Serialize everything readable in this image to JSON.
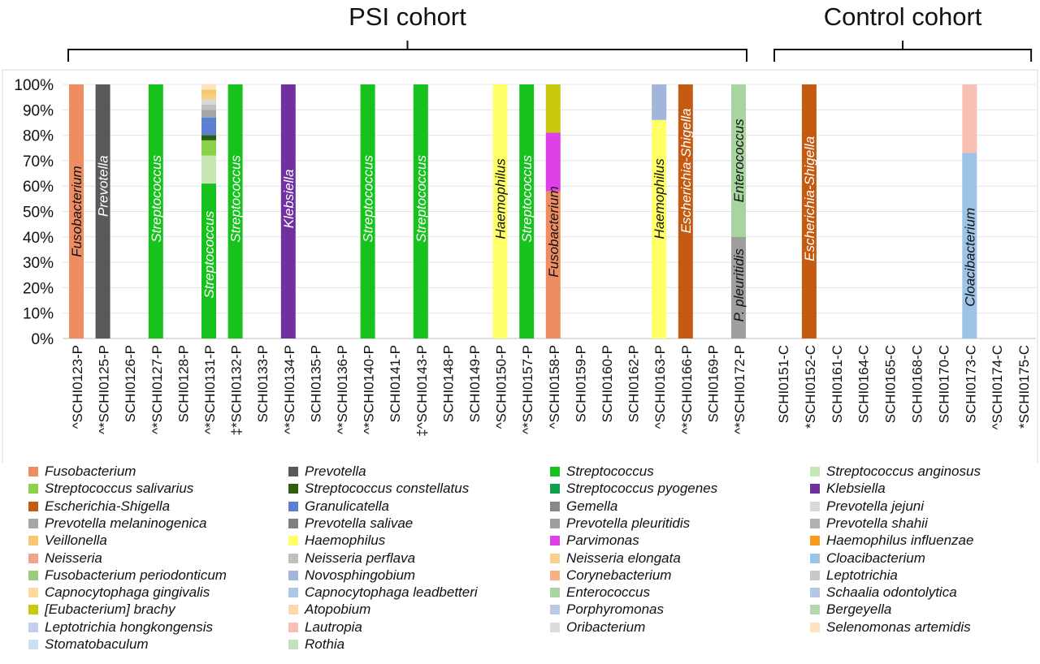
{
  "chart_data": {
    "type": "bar",
    "stacked": true,
    "ylim": [
      0,
      100
    ],
    "y_ticks": [
      "0%",
      "10%",
      "20%",
      "30%",
      "40%",
      "50%",
      "60%",
      "70%",
      "80%",
      "90%",
      "100%"
    ],
    "grid": true,
    "cohorts": [
      {
        "label": "PSI cohort",
        "first": 0,
        "last": 25
      },
      {
        "label": "Control cohort",
        "first": 26,
        "last": 35
      }
    ],
    "categories": [
      "^SCHI0123-P",
      "^*SCHI0125-P",
      "SCHI0126-P",
      "^*SCHI0127-P",
      "SCHI0128-P",
      "^*SCHI0131-P",
      "‡*SCHI0132-P",
      "SCHI0133-P",
      "^*SCHI0134-P",
      "SCHI0135-P",
      "^*SCHI0136-P",
      "^*SCHI0140-P",
      "SCHI0141-P",
      "‡^SCHI0143-P",
      "SCHI0148-P",
      "SCHI0149-P",
      "^SCHI0150-P",
      "^*SCHI0157-P",
      "^SCHI0158-P",
      "SCHI0159-P",
      "SCHI0160-P",
      "SCHI0162-P",
      "^SCHI0163-P",
      "^*SCHI0166-P",
      "SCHI0169-P",
      "^*SCHI0172-P",
      "SCHI0151-C",
      "*SCHI0152-C",
      "SCHI0161-C",
      "SCHI0164-C",
      "SCHI0165-C",
      "SCHI0168-C",
      "SCHI0170-C",
      "SCHI0173-C",
      "^SCHI0174-C",
      "*SCHI0175-C"
    ],
    "bars": [
      {
        "index": 0,
        "segments": [
          {
            "taxon": "Fusobacterium",
            "value": 100
          }
        ],
        "labels": [
          {
            "text": "Fusobacterium",
            "color": "#111111",
            "at": 50
          }
        ]
      },
      {
        "index": 1,
        "segments": [
          {
            "taxon": "Prevotella",
            "value": 100
          }
        ],
        "labels": [
          {
            "text": "Prevotella",
            "color": "#ffffff",
            "at": 60
          }
        ]
      },
      {
        "index": 3,
        "segments": [
          {
            "taxon": "Streptococcus",
            "value": 100
          }
        ],
        "labels": [
          {
            "text": "Streptococcus",
            "color": "#ffffff",
            "at": 55
          }
        ]
      },
      {
        "index": 5,
        "segments": [
          {
            "taxon": "Streptococcus",
            "value": 61
          },
          {
            "taxon": "Streptococcus anginosus",
            "value": 11
          },
          {
            "taxon": "Streptococcus salivarius",
            "value": 6
          },
          {
            "taxon": "Streptococcus constellatus",
            "value": 2
          },
          {
            "taxon": "Granulicatella",
            "value": 7
          },
          {
            "taxon": "Prevotella melaninogenica",
            "value": 3
          },
          {
            "taxon": "Neisseria perflava",
            "value": 2
          },
          {
            "taxon": "Prevotella jejuni",
            "value": 2
          },
          {
            "taxon": "Neisseria elongata",
            "value": 2
          },
          {
            "taxon": "Veillonella",
            "value": 2
          },
          {
            "taxon": "Selenomonas artemidis",
            "value": 2
          }
        ],
        "labels": [
          {
            "text": "Streptococcus",
            "color": "#ffffff",
            "at": 33
          }
        ]
      },
      {
        "index": 6,
        "segments": [
          {
            "taxon": "Streptococcus",
            "value": 100
          }
        ],
        "labels": [
          {
            "text": "Streptococcus",
            "color": "#ffffff",
            "at": 55
          }
        ]
      },
      {
        "index": 8,
        "segments": [
          {
            "taxon": "Klebsiella",
            "value": 100
          }
        ],
        "labels": [
          {
            "text": "Klebsiella",
            "color": "#ffffff",
            "at": 55
          }
        ]
      },
      {
        "index": 11,
        "segments": [
          {
            "taxon": "Streptococcus",
            "value": 100
          }
        ],
        "labels": [
          {
            "text": "Streptococcus",
            "color": "#ffffff",
            "at": 55
          }
        ]
      },
      {
        "index": 13,
        "segments": [
          {
            "taxon": "Streptococcus",
            "value": 100
          }
        ],
        "labels": [
          {
            "text": "Streptococcus",
            "color": "#ffffff",
            "at": 55
          }
        ]
      },
      {
        "index": 16,
        "segments": [
          {
            "taxon": "Haemophilus",
            "value": 100
          }
        ],
        "labels": [
          {
            "text": "Haemophilus",
            "color": "#111111",
            "at": 55
          }
        ]
      },
      {
        "index": 17,
        "segments": [
          {
            "taxon": "Streptococcus",
            "value": 100
          }
        ],
        "labels": [
          {
            "text": "Streptococcus",
            "color": "#ffffff",
            "at": 55
          }
        ]
      },
      {
        "index": 18,
        "segments": [
          {
            "taxon": "Fusobacterium",
            "value": 58
          },
          {
            "taxon": "Parvimonas",
            "value": 23
          },
          {
            "taxon": "[Eubacterium] brachy",
            "value": 19
          }
        ],
        "labels": [
          {
            "text": "Fusobacterium",
            "color": "#111111",
            "at": 42
          }
        ]
      },
      {
        "index": 22,
        "segments": [
          {
            "taxon": "Haemophilus",
            "value": 86
          },
          {
            "taxon": "Novosphingobium",
            "value": 14
          }
        ],
        "labels": [
          {
            "text": "Haemophilus",
            "color": "#111111",
            "at": 55
          }
        ]
      },
      {
        "index": 23,
        "segments": [
          {
            "taxon": "Escherichia-Shigella",
            "value": 100
          }
        ],
        "labels": [
          {
            "text": "Escherichia-Shigella",
            "color": "#ffffff",
            "at": 66
          }
        ]
      },
      {
        "index": 25,
        "segments": [
          {
            "taxon": "Prevotella pleuritidis",
            "value": 40
          },
          {
            "taxon": "Enterococcus",
            "value": 60
          }
        ],
        "labels": [
          {
            "text": "P. pleuritidis",
            "color": "#111111",
            "at": 21
          },
          {
            "text": "Enterococcus",
            "color": "#111111",
            "at": 70
          }
        ]
      },
      {
        "index": 27,
        "segments": [
          {
            "taxon": "Escherichia-Shigella",
            "value": 100
          }
        ],
        "labels": [
          {
            "text": "Escherichia-Shigella",
            "color": "#ffffff",
            "at": 55
          }
        ]
      },
      {
        "index": 33,
        "segments": [
          {
            "taxon": "Cloacibacterium",
            "value": 73
          },
          {
            "taxon": "Lautropia",
            "value": 27
          }
        ],
        "labels": [
          {
            "text": "Cloacibacterium",
            "color": "#111111",
            "at": 32
          }
        ]
      }
    ],
    "legend": [
      {
        "name": "Fusobacterium",
        "color": "#ef8d62"
      },
      {
        "name": "Prevotella",
        "color": "#595959"
      },
      {
        "name": "Streptococcus",
        "color": "#17c21f"
      },
      {
        "name": "Streptococcus anginosus",
        "color": "#c7e7b5"
      },
      {
        "name": "Streptococcus salivarius",
        "color": "#8bd24a"
      },
      {
        "name": "Streptococcus constellatus",
        "color": "#2f5e12"
      },
      {
        "name": "Streptococcus pyogenes",
        "color": "#10a04a"
      },
      {
        "name": "Klebsiella",
        "color": "#7030a0"
      },
      {
        "name": "Escherichia-Shigella",
        "color": "#c55a11"
      },
      {
        "name": "Granulicatella",
        "color": "#5b7fd1"
      },
      {
        "name": "Gemella",
        "color": "#888888"
      },
      {
        "name": "Prevotella jejuni",
        "color": "#d9d9d9"
      },
      {
        "name": "Prevotella melaninogenica",
        "color": "#a6a6a6"
      },
      {
        "name": "Prevotella salivae",
        "color": "#7f7f7f"
      },
      {
        "name": "Prevotella pleuritidis",
        "color": "#9e9e9e"
      },
      {
        "name": "Prevotella shahii",
        "color": "#b0b0b0"
      },
      {
        "name": "Veillonella",
        "color": "#f7c86e"
      },
      {
        "name": "Haemophilus",
        "color": "#ffff66"
      },
      {
        "name": "Parvimonas",
        "color": "#e040e8"
      },
      {
        "name": "Haemophilus influenzae",
        "color": "#f79a1e"
      },
      {
        "name": "Neisseria",
        "color": "#f2a48d"
      },
      {
        "name": "Neisseria perflava",
        "color": "#bfbfbf"
      },
      {
        "name": "Neisseria elongata",
        "color": "#f9d08a"
      },
      {
        "name": "Cloacibacterium",
        "color": "#9dc3e6"
      },
      {
        "name": "Fusobacterium periodonticum",
        "color": "#9ccc7e"
      },
      {
        "name": "Novosphingobium",
        "color": "#a4b5db"
      },
      {
        "name": "Corynebacterium",
        "color": "#f4b183"
      },
      {
        "name": "Leptotrichia",
        "color": "#c9c9c9"
      },
      {
        "name": "Capnocytophaga gingivalis",
        "color": "#ffd9a0"
      },
      {
        "name": "Capnocytophaga leadbetteri",
        "color": "#aec6e8"
      },
      {
        "name": "Enterococcus",
        "color": "#a8d4a0"
      },
      {
        "name": "Schaalia odontolytica",
        "color": "#b4c7e7"
      },
      {
        "name": "[Eubacterium] brachy",
        "color": "#c9c90e"
      },
      {
        "name": "Atopobium",
        "color": "#fcd9a8"
      },
      {
        "name": "Porphyromonas",
        "color": "#b9cbe4"
      },
      {
        "name": "Bergeyella",
        "color": "#b5d8a8"
      },
      {
        "name": "Leptotrichia hongkongensis",
        "color": "#c4cef0"
      },
      {
        "name": "Lautropia",
        "color": "#f8c0b4"
      },
      {
        "name": "Oribacterium",
        "color": "#dcdcdc"
      },
      {
        "name": "Selenomonas artemidis",
        "color": "#fde4bf"
      },
      {
        "name": "Stomatobaculum",
        "color": "#cddff2"
      },
      {
        "name": "Rothia",
        "color": "#c6e0bd"
      }
    ]
  }
}
